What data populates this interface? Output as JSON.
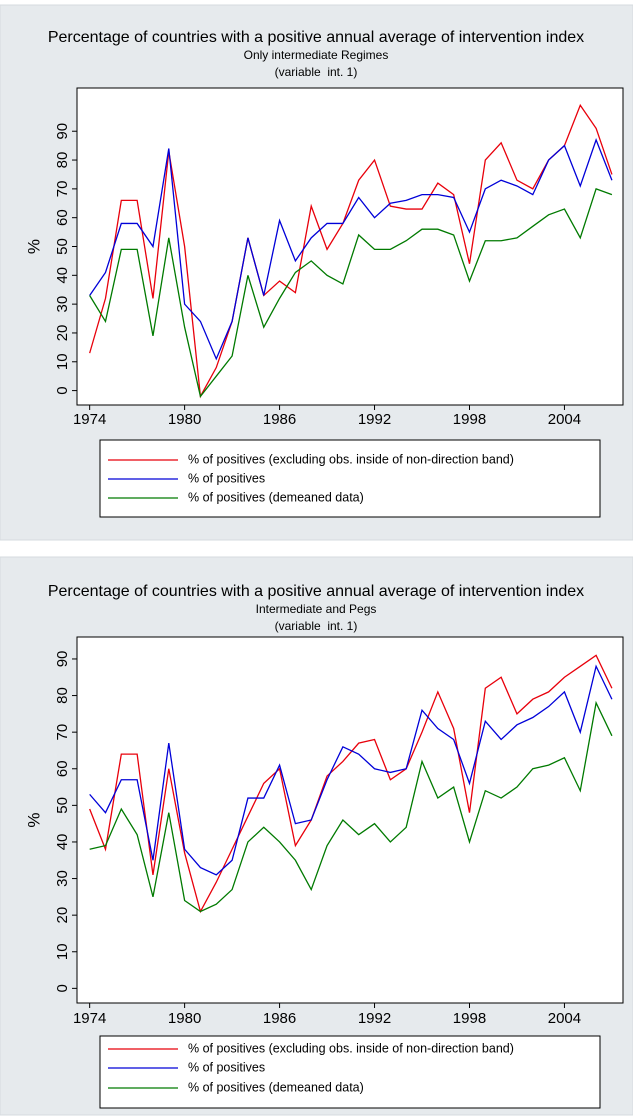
{
  "chart_data": [
    {
      "type": "line",
      "title": "Percentage of countries with a positive annual average of intervention index",
      "subtitle": "Only intermediate Regimes",
      "note": "(variable  int. 1)",
      "y_label": "%",
      "x": [
        1974,
        1975,
        1976,
        1977,
        1978,
        1979,
        1980,
        1981,
        1982,
        1983,
        1984,
        1985,
        1986,
        1987,
        1988,
        1989,
        1990,
        1991,
        1992,
        1993,
        1994,
        1995,
        1996,
        1997,
        1998,
        1999,
        2000,
        2001,
        2002,
        2003,
        2004,
        2005,
        2006,
        2007
      ],
      "xlim": [
        1973.2,
        2007.7
      ],
      "xticks": [
        1974,
        1980,
        1986,
        1992,
        1998,
        2004
      ],
      "ylim": [
        -5,
        105
      ],
      "yticks": [
        0,
        10,
        20,
        30,
        40,
        50,
        60,
        70,
        80,
        90
      ],
      "grid": false,
      "series": [
        {
          "name": "% of positives (excluding obs. inside of non-direction band)",
          "color": "#e8000b",
          "values": [
            13,
            32,
            66,
            66,
            32,
            83,
            50,
            -2,
            8,
            24,
            53,
            33,
            38,
            34,
            64,
            49,
            58,
            73,
            80,
            64,
            63,
            63,
            72,
            68,
            44,
            80,
            86,
            73,
            70,
            80,
            85,
            99,
            91,
            75
          ]
        },
        {
          "name": "% of positives",
          "color": "#0000d8",
          "values": [
            33,
            41,
            58,
            58,
            50,
            84,
            30,
            24,
            11,
            24,
            53,
            33,
            59,
            45,
            53,
            58,
            58,
            67,
            60,
            65,
            66,
            68,
            68,
            67,
            55,
            70,
            73,
            71,
            68,
            80,
            85,
            71,
            87,
            73
          ]
        },
        {
          "name": "% of positives (demeaned data)",
          "color": "#007a00",
          "values": [
            33,
            24,
            49,
            49,
            19,
            53,
            22,
            -2,
            5,
            12,
            40,
            22,
            32,
            41,
            45,
            40,
            37,
            54,
            49,
            49,
            52,
            56,
            56,
            54,
            38,
            52,
            52,
            53,
            57,
            61,
            63,
            53,
            70,
            68
          ]
        }
      ]
    },
    {
      "type": "line",
      "title": "Percentage of countries with a positive annual average of intervention index",
      "subtitle": "Intermediate and Pegs",
      "note": "(variable  int. 1)",
      "y_label": "%",
      "x": [
        1974,
        1975,
        1976,
        1977,
        1978,
        1979,
        1980,
        1981,
        1982,
        1983,
        1984,
        1985,
        1986,
        1987,
        1988,
        1989,
        1990,
        1991,
        1992,
        1993,
        1994,
        1995,
        1996,
        1997,
        1998,
        1999,
        2000,
        2001,
        2002,
        2003,
        2004,
        2005,
        2006,
        2007
      ],
      "xlim": [
        1973.2,
        2007.7
      ],
      "xticks": [
        1974,
        1980,
        1986,
        1992,
        1998,
        2004
      ],
      "ylim": [
        -4,
        96
      ],
      "yticks": [
        0,
        10,
        20,
        30,
        40,
        50,
        60,
        70,
        80,
        90
      ],
      "grid": false,
      "series": [
        {
          "name": "% of positives (excluding obs. inside of non-direction band)",
          "color": "#e8000b",
          "values": [
            49,
            38,
            64,
            64,
            31,
            60,
            37,
            21,
            29,
            38,
            47,
            56,
            60,
            39,
            46,
            58,
            62,
            67,
            68,
            57,
            60,
            70,
            81,
            71,
            48,
            82,
            85,
            75,
            79,
            81,
            85,
            88,
            91,
            82
          ]
        },
        {
          "name": "% of positives",
          "color": "#0000d8",
          "values": [
            53,
            48,
            57,
            57,
            35,
            67,
            38,
            33,
            31,
            35,
            52,
            52,
            61,
            45,
            46,
            57,
            66,
            64,
            60,
            59,
            60,
            76,
            71,
            68,
            56,
            73,
            68,
            72,
            74,
            77,
            81,
            70,
            88,
            79
          ]
        },
        {
          "name": "% of positives (demeaned data)",
          "color": "#007a00",
          "values": [
            38,
            39,
            49,
            42,
            25,
            48,
            24,
            21,
            23,
            27,
            40,
            44,
            40,
            35,
            27,
            39,
            46,
            42,
            45,
            40,
            44,
            62,
            52,
            55,
            40,
            54,
            52,
            55,
            60,
            61,
            63,
            54,
            78,
            69
          ]
        }
      ]
    }
  ]
}
